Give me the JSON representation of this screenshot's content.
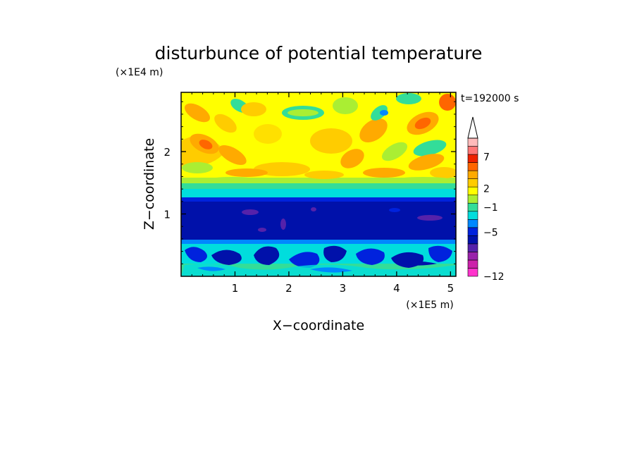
{
  "chart_data": {
    "type": "heatmap",
    "title": "disturbunce of potential temperature",
    "time_label": "t=192000 s",
    "xlabel": "X−coordinate",
    "ylabel": "Z−coordinate",
    "x_unit": "(×1E5 m)",
    "y_unit": "(×1E4 m)",
    "xlim": [
      0,
      5.1
    ],
    "ylim": [
      0,
      2.95
    ],
    "x_ticks": [
      1,
      2,
      3,
      4,
      5
    ],
    "x_tick_labels": [
      "1",
      "2",
      "3",
      "4",
      "5"
    ],
    "y_ticks": [
      1,
      2
    ],
    "y_tick_labels": [
      "1",
      "2"
    ],
    "colorbar": {
      "levels": [
        -12,
        -11,
        -10,
        -9,
        -8,
        -7,
        -6,
        -5,
        -4,
        -3,
        -2,
        -1,
        0,
        1,
        2,
        3,
        4,
        5,
        6,
        7,
        8,
        9,
        10
      ],
      "labeled_values": [
        -12,
        -5,
        -1,
        2,
        7
      ],
      "labels": [
        "−12",
        "−5",
        "−1",
        "2",
        "7"
      ],
      "colors": [
        "#ff33cc",
        "#cc22aa",
        "#9922aa",
        "#5522aa",
        "#0011aa",
        "#0022dd",
        "#0088ff",
        "#00dddd",
        "#33dd99",
        "#aaee33",
        "#ffff00",
        "#ffcc00",
        "#ffaa00",
        "#ff6600",
        "#ee2200",
        "#ff7777",
        "#ffbbbb"
      ],
      "extend_max": true
    },
    "regions": [
      {
        "z_range": [
          0,
          0.25
        ],
        "level": "0 to -3",
        "pattern": "blue-cyan-green mix"
      },
      {
        "z_range": [
          0.25,
          0.55
        ],
        "level": "-1 to -4",
        "pattern": "cyan with dark blue patches"
      },
      {
        "z_range": [
          0.55,
          1.25
        ],
        "level": "-5",
        "pattern": "dark blue band with purple spots"
      },
      {
        "z_range": [
          1.25,
          1.4
        ],
        "level": "-2 to 0",
        "pattern": "cyan/green/yellow transition"
      },
      {
        "z_range": [
          1.4,
          2.95
        ],
        "level": "0 to 4",
        "pattern": "yellow/orange wave pattern with red cells"
      }
    ]
  }
}
